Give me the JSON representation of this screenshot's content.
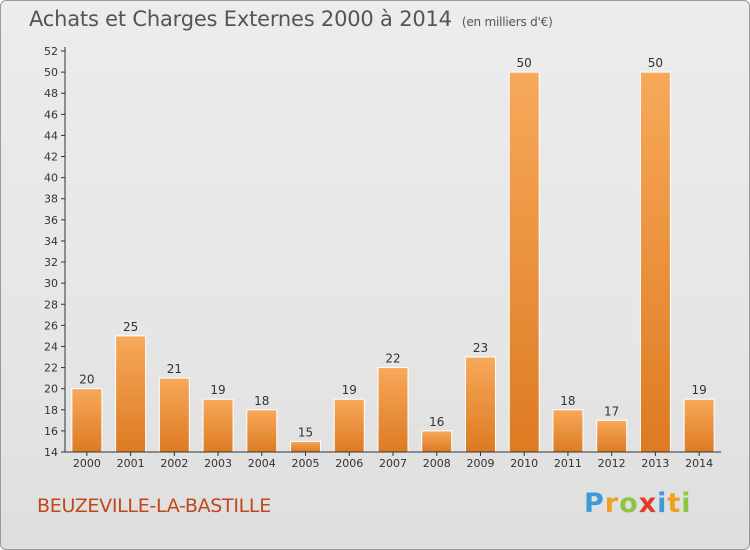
{
  "header": {
    "title": "Achats et Charges Externes 2000 à 2014",
    "unit": "(en milliers d'€)"
  },
  "footer": {
    "city": "BEUZEVILLE-LA-BASTILLE",
    "logo_letters": [
      {
        "char": "P",
        "color": "#3b9bd8"
      },
      {
        "char": "r",
        "color": "#f0a020"
      },
      {
        "char": "o",
        "color": "#8cc63f"
      },
      {
        "char": "x",
        "color": "#e23a2a"
      },
      {
        "char": "i",
        "color": "#3b9bd8"
      },
      {
        "char": "t",
        "color": "#f0a020"
      },
      {
        "char": "i",
        "color": "#8cc63f"
      }
    ]
  },
  "colors": {
    "bar_light": "#f7a95a",
    "bar_dark": "#dd7a22",
    "axis": "#333333",
    "text": "#333333",
    "grid": "#ffffff"
  },
  "chart_data": {
    "type": "bar",
    "categories": [
      "2000",
      "2001",
      "2002",
      "2003",
      "2004",
      "2005",
      "2006",
      "2007",
      "2008",
      "2009",
      "2010",
      "2011",
      "2012",
      "2013",
      "2014"
    ],
    "values": [
      20,
      25,
      21,
      19,
      18,
      15,
      19,
      22,
      16,
      23,
      50,
      18,
      17,
      50,
      19
    ],
    "ylim": [
      14,
      52
    ],
    "ytick_step": 2,
    "grid": false,
    "data_labels": true
  }
}
